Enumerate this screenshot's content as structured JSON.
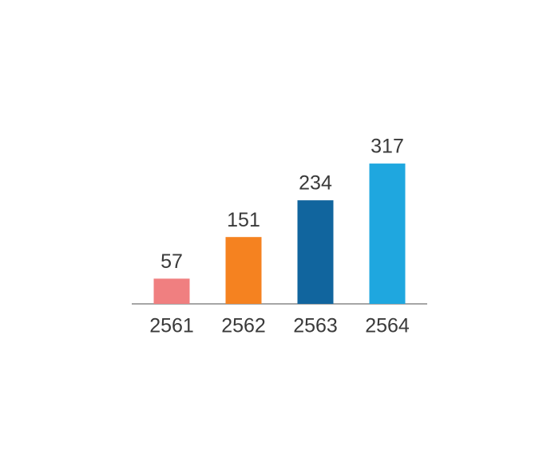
{
  "chart_data": {
    "type": "bar",
    "categories": [
      "2561",
      "2562",
      "2563",
      "2564"
    ],
    "values": [
      57,
      151,
      234,
      317
    ],
    "colors": [
      "#f07f80",
      "#f58220",
      "#11659e",
      "#1fa7df"
    ]
  }
}
